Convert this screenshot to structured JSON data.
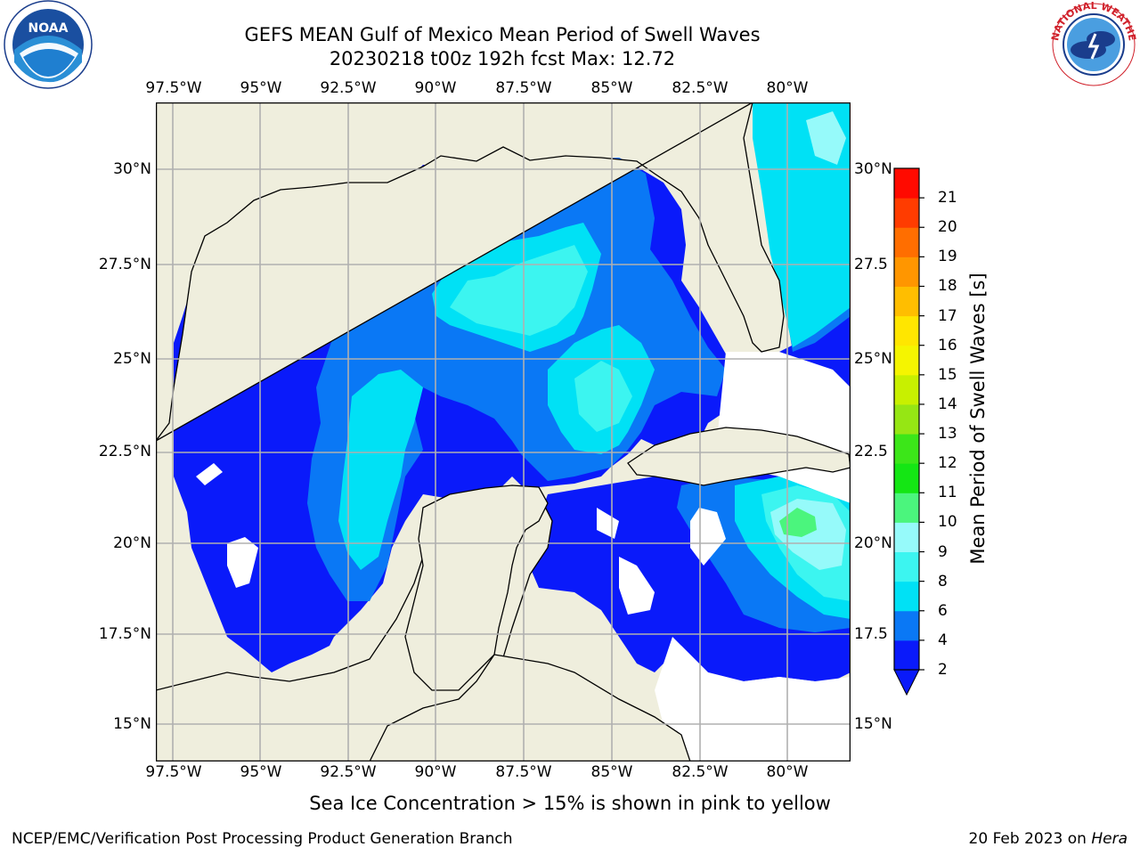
{
  "header": {
    "title_line1": "GEFS MEAN Gulf of Mexico Mean Period of Swell Waves",
    "title_line2": "20230218 t00z 192h fcst   Max: 12.72"
  },
  "logos": {
    "left": {
      "name": "NOAA",
      "text": "NOAA",
      "ring_text": "NATIONAL OCEANIC AND ATMOSPHERIC ADMINISTRATION · U.S. DEPARTMENT OF COMMERCE"
    },
    "right": {
      "name": "National Weather Service",
      "ring_text": "NATIONAL WEATHER SERVICE"
    }
  },
  "map": {
    "lon_labels": [
      "97.5°W",
      "95°W",
      "92.5°W",
      "90°W",
      "87.5°W",
      "85°W",
      "82.5°W",
      "80°W"
    ],
    "lat_labels_left": [
      "30°N",
      "27.5°N",
      "25°N",
      "22.5°N",
      "20°N",
      "17.5°N",
      "15°N"
    ],
    "lat_labels_right": [
      "30°N",
      "27.5",
      "25°N",
      "22.5",
      "20°N",
      "17.5",
      "15°N"
    ],
    "land_color": "#efeedd",
    "water_missing_color": "#ffffff"
  },
  "colorbar": {
    "title": "Mean Period of Swell Waves [s]",
    "ticks": [
      "2",
      "4",
      "6",
      "8",
      "9",
      "10",
      "11",
      "12",
      "13",
      "14",
      "15",
      "16",
      "17",
      "18",
      "19",
      "20",
      "21"
    ],
    "colors": [
      "#0a1afa",
      "#0a78f5",
      "#00e1f5",
      "#3cf5f0",
      "#96fafa",
      "#4bf57d",
      "#14e614",
      "#3ce619",
      "#96e614",
      "#c8f000",
      "#f5f500",
      "#ffe600",
      "#ffbe00",
      "#ff9600",
      "#ff6e00",
      "#ff3c00",
      "#ff0a00"
    ],
    "extend_color": "#0a1afa"
  },
  "footer": {
    "subtitle": "Sea Ice Concentration > 15% is shown in pink to yellow",
    "left": "NCEP/EMC/Verification Post Processing Product Generation Branch",
    "right_date": "20 Feb 2023 on ",
    "right_host": "Hera"
  }
}
